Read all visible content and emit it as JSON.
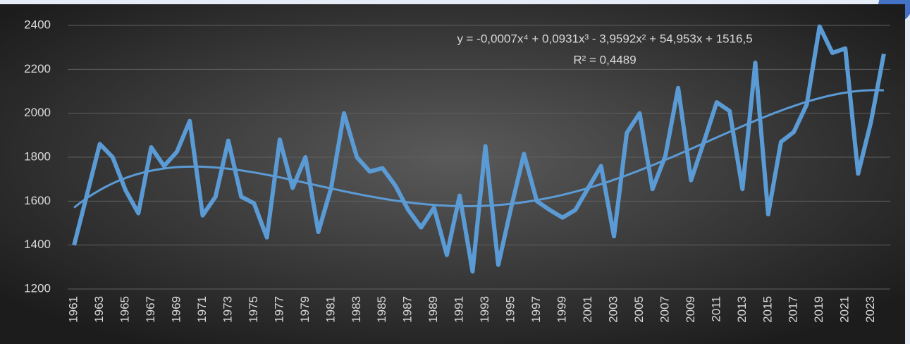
{
  "chart_data": {
    "type": "line",
    "equation": "y = -0,0007x⁴ + 0,0931x³ - 3,9592x² + 54,953x + 1516,5",
    "r_squared": "R² = 0,4489",
    "categories": [
      1961,
      null,
      1963,
      null,
      1965,
      null,
      1967,
      null,
      1969,
      null,
      1971,
      null,
      1973,
      null,
      1975,
      null,
      1977,
      null,
      1979,
      null,
      1981,
      null,
      1983,
      null,
      1985,
      null,
      1987,
      null,
      1989,
      null,
      1991,
      null,
      1993,
      null,
      1995,
      null,
      1997,
      null,
      1999,
      null,
      2001,
      null,
      2003,
      null,
      2005,
      null,
      2007,
      null,
      2009,
      null,
      2011,
      null,
      2013,
      null,
      2015,
      null,
      2017,
      null,
      2019,
      null,
      2021,
      null,
      2023,
      null
    ],
    "series": [
      {
        "color": "#5b9bd5",
        "values": [
          1400,
          1630,
          1860,
          1800,
          1650,
          1545,
          1845,
          1760,
          1825,
          1965,
          1535,
          1620,
          1875,
          1620,
          1590,
          1435,
          1880,
          1660,
          1800,
          1460,
          1660,
          2000,
          1800,
          1735,
          1750,
          1670,
          1560,
          1480,
          1570,
          1355,
          1625,
          1280,
          1850,
          1310,
          1570,
          1815,
          1600,
          1560,
          1525,
          1560,
          1660,
          1760,
          1440,
          1910,
          2000,
          1655,
          1805,
          2115,
          1695,
          1870,
          2050,
          2010,
          1655,
          2230,
          1540,
          1870,
          1915,
          2040,
          2395,
          2275,
          2295,
          1725,
          1960,
          2270
        ]
      }
    ],
    "trendline": {
      "type": "polynomial",
      "order": 4,
      "color": "#5b9bd5"
    },
    "ylim": [
      1200,
      2400
    ],
    "yticks": [
      1200,
      1400,
      1600,
      1800,
      2000,
      2200,
      2400
    ],
    "grid": true
  }
}
